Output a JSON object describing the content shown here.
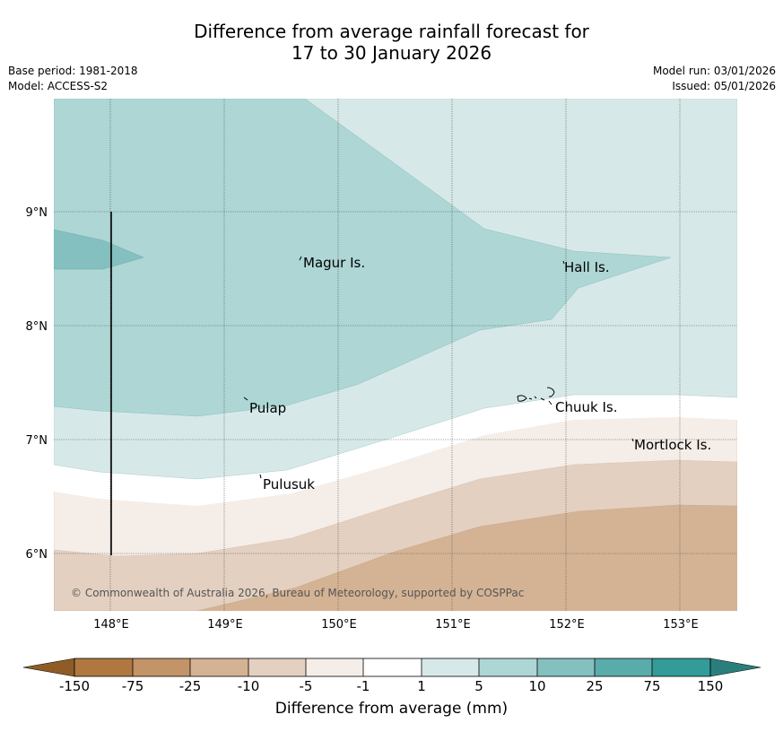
{
  "header": {
    "title_line1": "Difference from average rainfall forecast for",
    "title_line2": "17 to 30 January 2026",
    "base_period": "Base period: 1981-2018",
    "model": "Model: ACCESS-S2",
    "model_run": "Model run: 03/01/2026",
    "issued": "Issued: 05/01/2026"
  },
  "map": {
    "lon_labels": [
      "148°E",
      "149°E",
      "150°E",
      "151°E",
      "152°E",
      "153°E"
    ],
    "lat_labels": [
      "9°N",
      "8°N",
      "7°N",
      "6°N"
    ],
    "places": [
      {
        "key": "magur",
        "label": "Magur Is."
      },
      {
        "key": "hall",
        "label": "Hall Is."
      },
      {
        "key": "pulap",
        "label": "Pulap"
      },
      {
        "key": "chuuk",
        "label": "Chuuk Is."
      },
      {
        "key": "mortlock",
        "label": "Mortlock Is."
      },
      {
        "key": "pulusuk",
        "label": "Pulusuk"
      }
    ],
    "copyright": "© Commonwealth of Australia 2026, Bureau of Meteorology, supported by COSPPac"
  },
  "colorbar": {
    "title": "Difference from average (mm)",
    "ticks": [
      "-150",
      "-75",
      "-25",
      "-10",
      "-5",
      "-1",
      "1",
      "5",
      "10",
      "25",
      "75",
      "150"
    ],
    "colors": {
      "extend_low": "#8f5c26",
      "c_m150_m75": "#b07840",
      "c_m75_m25": "#c29468",
      "c_m25_m10": "#d4b394",
      "c_m10_m5": "#e3d0c0",
      "c_m5_m1": "#f5ede8",
      "c_m1_1": "#ffffff",
      "c_1_5": "#d6e9e8",
      "c_5_10": "#add6d5",
      "c_10_25": "#84c0bf",
      "c_25_75": "#5aacaa",
      "c_75_150": "#339b98",
      "extend_high": "#2a7f7c"
    }
  }
}
